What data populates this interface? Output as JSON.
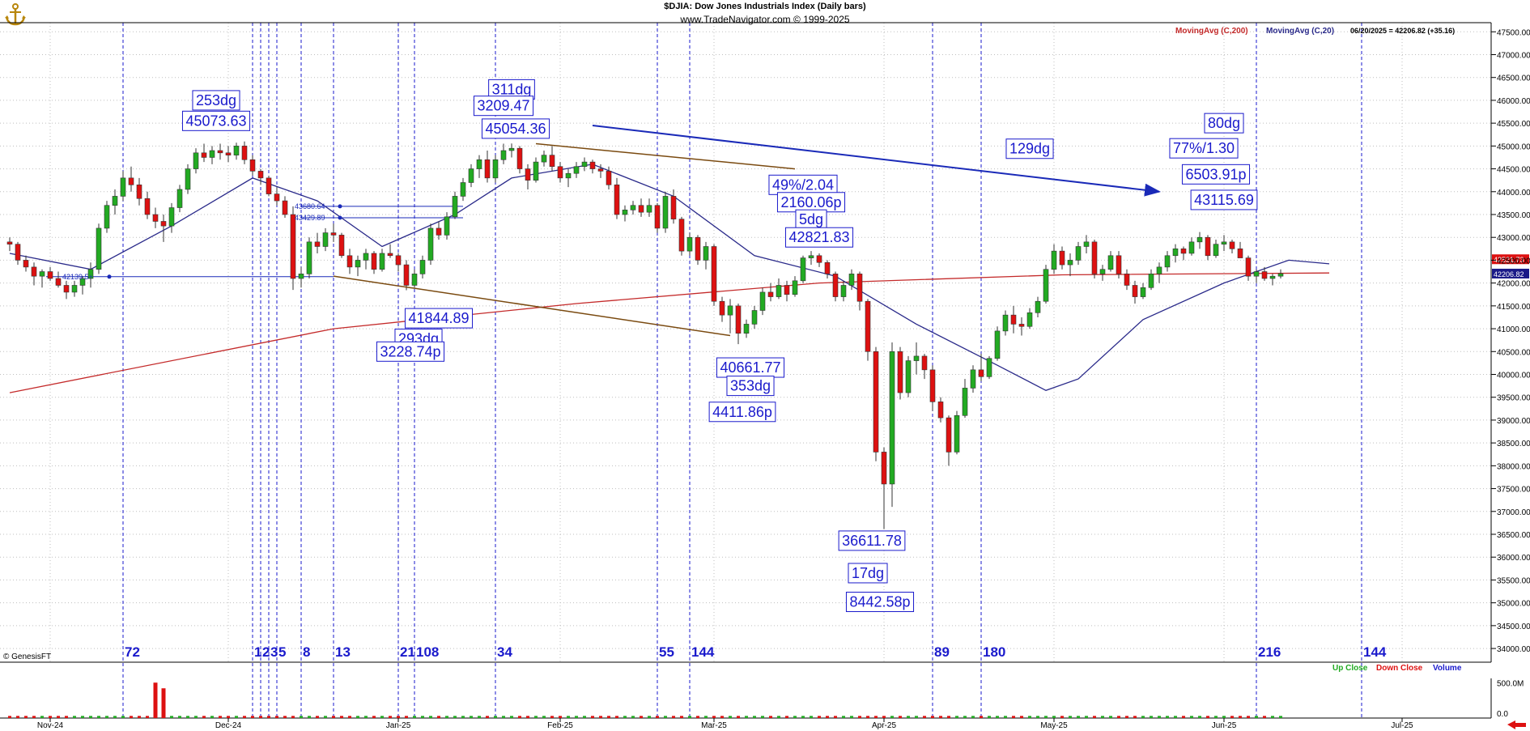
{
  "header": {
    "title": "$DJIA:  Dow Jones Industrials Index  (Daily bars)",
    "site": "www.TradeNavigator.com © 1999-2025"
  },
  "legend": {
    "ma200_label": "MovingAvg (C,200)",
    "ma20_label": "MovingAvg (C,20)",
    "readout": "06/20/2025 = 42206.82 (+35.16)"
  },
  "watermark": "© GenesisFT",
  "volume_legend": {
    "up": "Up Close",
    "down": "Down Close",
    "vol": "Volume"
  },
  "colors": {
    "up": "#22aa22",
    "down": "#dd1111",
    "ma200": "#c42a2a",
    "ma20": "#2a2a8a",
    "annotation": "#1a1acc",
    "grid": "#bfbfbf",
    "trend_blue": "#1a2ab8",
    "trend_brown": "#7a4a10"
  },
  "chart_data": {
    "type": "candlestick",
    "title": "$DJIA:  Dow Jones Industrials Index  (Daily bars)",
    "ylim": [
      33700,
      47700
    ],
    "y_ticks": [
      "34000.00",
      "34500.00",
      "35000.00",
      "35500.00",
      "36000.00",
      "36500.00",
      "37000.00",
      "37500.00",
      "38000.00",
      "38500.00",
      "39000.00",
      "39500.00",
      "40000.00",
      "40500.00",
      "41000.00",
      "41500.00",
      "42000.00",
      "42500.00",
      "43000.00",
      "43500.00",
      "44000.00",
      "44500.00",
      "45000.00",
      "45500.00",
      "46000.00",
      "46500.00",
      "47000.00",
      "47500.00"
    ],
    "x_labels": [
      {
        "label": "Nov-24",
        "bar": 5
      },
      {
        "label": "Dec-24",
        "bar": 27
      },
      {
        "label": "Jan-25",
        "bar": 48
      },
      {
        "label": "Feb-25",
        "bar": 68
      },
      {
        "label": "Mar-25",
        "bar": 87
      },
      {
        "label": "Apr-25",
        "bar": 108
      },
      {
        "label": "May-25",
        "bar": 129
      },
      {
        "label": "Jun-25",
        "bar": 150
      },
      {
        "label": "Jul-25",
        "bar": 172
      }
    ],
    "candles": [
      [
        42900,
        43000,
        42700,
        42850
      ],
      [
        42850,
        42900,
        42400,
        42500
      ],
      [
        42500,
        42600,
        42250,
        42350
      ],
      [
        42350,
        42450,
        41950,
        42150
      ],
      [
        42150,
        42300,
        41900,
        42250
      ],
      [
        42250,
        42350,
        42050,
        42100
      ],
      [
        42100,
        42250,
        41900,
        41950
      ],
      [
        41950,
        42050,
        41650,
        41800
      ],
      [
        41800,
        42050,
        41700,
        41950
      ],
      [
        41950,
        42150,
        41750,
        42100
      ],
      [
        42100,
        42450,
        41900,
        42300
      ],
      [
        42300,
        43300,
        42200,
        43200
      ],
      [
        43200,
        43800,
        43100,
        43700
      ],
      [
        43700,
        44050,
        43500,
        43900
      ],
      [
        43900,
        44450,
        43800,
        44300
      ],
      [
        44300,
        44550,
        44000,
        44150
      ],
      [
        44150,
        44300,
        43700,
        43850
      ],
      [
        43850,
        44000,
        43400,
        43500
      ],
      [
        43500,
        43650,
        43200,
        43350
      ],
      [
        43350,
        43500,
        42900,
        43250
      ],
      [
        43250,
        43750,
        43100,
        43650
      ],
      [
        43650,
        44150,
        43550,
        44050
      ],
      [
        44050,
        44600,
        43950,
        44500
      ],
      [
        44500,
        44950,
        44400,
        44850
      ],
      [
        44850,
        45050,
        44650,
        44750
      ],
      [
        44750,
        45000,
        44600,
        44900
      ],
      [
        44900,
        45050,
        44700,
        44850
      ],
      [
        44850,
        45000,
        44650,
        44800
      ],
      [
        44800,
        45073,
        44700,
        45000
      ],
      [
        45000,
        45100,
        44600,
        44700
      ],
      [
        44700,
        44800,
        44350,
        44450
      ],
      [
        44450,
        44500,
        44150,
        44300
      ],
      [
        44300,
        44350,
        43900,
        43950
      ],
      [
        43950,
        44100,
        43700,
        43800
      ],
      [
        43800,
        43900,
        43430,
        43500
      ],
      [
        43500,
        43680,
        41850,
        42100
      ],
      [
        42100,
        42350,
        41900,
        42200
      ],
      [
        42200,
        43000,
        42100,
        42900
      ],
      [
        42900,
        43100,
        42650,
        42800
      ],
      [
        42800,
        43200,
        42700,
        43100
      ],
      [
        43100,
        43300,
        42900,
        43050
      ],
      [
        43050,
        43100,
        42550,
        42600
      ],
      [
        42600,
        42750,
        42200,
        42350
      ],
      [
        42350,
        42600,
        42150,
        42500
      ],
      [
        42500,
        42750,
        42300,
        42650
      ],
      [
        42650,
        42700,
        42200,
        42300
      ],
      [
        42300,
        42750,
        42250,
        42650
      ],
      [
        42650,
        42850,
        42550,
        42600
      ],
      [
        42600,
        42650,
        42250,
        42400
      ],
      [
        42400,
        42500,
        41844,
        41950
      ],
      [
        41950,
        42300,
        41900,
        42200
      ],
      [
        42200,
        42600,
        42100,
        42500
      ],
      [
        42500,
        43300,
        42400,
        43200
      ],
      [
        43200,
        43350,
        42950,
        43050
      ],
      [
        43050,
        43550,
        42950,
        43450
      ],
      [
        43450,
        44000,
        43400,
        43900
      ],
      [
        43900,
        44300,
        43800,
        44200
      ],
      [
        44200,
        44600,
        44100,
        44500
      ],
      [
        44500,
        44800,
        44300,
        44700
      ],
      [
        44700,
        44900,
        44200,
        44300
      ],
      [
        44300,
        44800,
        44200,
        44700
      ],
      [
        44700,
        45050,
        44600,
        44900
      ],
      [
        44900,
        45054,
        44750,
        44950
      ],
      [
        44950,
        45000,
        44400,
        44500
      ],
      [
        44500,
        44600,
        44050,
        44250
      ],
      [
        44250,
        44750,
        44200,
        44650
      ],
      [
        44650,
        44900,
        44550,
        44800
      ],
      [
        44800,
        45000,
        44450,
        44550
      ],
      [
        44550,
        44650,
        44200,
        44300
      ],
      [
        44300,
        44500,
        44100,
        44400
      ],
      [
        44400,
        44650,
        44300,
        44550
      ],
      [
        44550,
        44750,
        44450,
        44650
      ],
      [
        44650,
        44700,
        44400,
        44500
      ],
      [
        44500,
        44600,
        44300,
        44450
      ],
      [
        44450,
        44550,
        44050,
        44150
      ],
      [
        44150,
        44300,
        43400,
        43500
      ],
      [
        43500,
        43700,
        43350,
        43600
      ],
      [
        43600,
        43800,
        43500,
        43700
      ],
      [
        43700,
        43850,
        43450,
        43550
      ],
      [
        43550,
        43850,
        43450,
        43700
      ],
      [
        43700,
        43750,
        43100,
        43200
      ],
      [
        43200,
        44000,
        43100,
        43900
      ],
      [
        43900,
        44050,
        43300,
        43400
      ],
      [
        43400,
        43450,
        42600,
        42700
      ],
      [
        42700,
        43100,
        42600,
        43000
      ],
      [
        43000,
        43050,
        42400,
        42500
      ],
      [
        42500,
        42900,
        42300,
        42800
      ],
      [
        42800,
        42850,
        41500,
        41600
      ],
      [
        41600,
        41700,
        41150,
        41300
      ],
      [
        41300,
        41650,
        40900,
        41500
      ],
      [
        41500,
        41550,
        40662,
        40900
      ],
      [
        40900,
        41200,
        40800,
        41100
      ],
      [
        41100,
        41500,
        41000,
        41400
      ],
      [
        41400,
        41900,
        41300,
        41800
      ],
      [
        41800,
        42000,
        41600,
        41700
      ],
      [
        41700,
        42100,
        41650,
        41950
      ],
      [
        41950,
        42050,
        41600,
        41750
      ],
      [
        41750,
        42150,
        41700,
        42050
      ],
      [
        42050,
        42600,
        42000,
        42550
      ],
      [
        42550,
        42700,
        42400,
        42600
      ],
      [
        42600,
        42650,
        42350,
        42450
      ],
      [
        42450,
        42500,
        42100,
        42200
      ],
      [
        42200,
        42250,
        41600,
        41700
      ],
      [
        41700,
        42050,
        41600,
        41950
      ],
      [
        41950,
        42300,
        41850,
        42200
      ],
      [
        42200,
        42250,
        41400,
        41600
      ],
      [
        41600,
        41650,
        40300,
        40500
      ],
      [
        40500,
        40600,
        38100,
        38300
      ],
      [
        38300,
        38400,
        36612,
        37600
      ],
      [
        37600,
        40700,
        37100,
        40500
      ],
      [
        40500,
        40600,
        39450,
        39600
      ],
      [
        39600,
        40400,
        39500,
        40300
      ],
      [
        40300,
        40700,
        40000,
        40400
      ],
      [
        40400,
        40450,
        39900,
        40100
      ],
      [
        40100,
        40200,
        39200,
        39400
      ],
      [
        39400,
        39500,
        38950,
        39050
      ],
      [
        39050,
        39100,
        38000,
        38300
      ],
      [
        38300,
        39200,
        38250,
        39100
      ],
      [
        39100,
        39900,
        39050,
        39700
      ],
      [
        39700,
        40200,
        39600,
        40100
      ],
      [
        40100,
        40450,
        39850,
        39950
      ],
      [
        39950,
        40400,
        39900,
        40350
      ],
      [
        40350,
        41050,
        40300,
        40950
      ],
      [
        40950,
        41400,
        40850,
        41300
      ],
      [
        41300,
        41500,
        40900,
        41100
      ],
      [
        41100,
        41250,
        40850,
        41050
      ],
      [
        41050,
        41450,
        41000,
        41350
      ],
      [
        41350,
        41700,
        41250,
        41600
      ],
      [
        41600,
        42400,
        41550,
        42300
      ],
      [
        42300,
        42850,
        42200,
        42700
      ],
      [
        42700,
        42800,
        42300,
        42400
      ],
      [
        42400,
        42650,
        42150,
        42500
      ],
      [
        42500,
        42900,
        42400,
        42800
      ],
      [
        42800,
        43050,
        42650,
        42900
      ],
      [
        42900,
        42950,
        42100,
        42200
      ],
      [
        42200,
        42400,
        42050,
        42300
      ],
      [
        42300,
        42700,
        42250,
        42600
      ],
      [
        42600,
        42700,
        42100,
        42200
      ],
      [
        42200,
        42300,
        41850,
        41950
      ],
      [
        41950,
        42050,
        41550,
        41700
      ],
      [
        41700,
        42000,
        41650,
        41900
      ],
      [
        41900,
        42300,
        41850,
        42200
      ],
      [
        42200,
        42450,
        42000,
        42350
      ],
      [
        42350,
        42700,
        42250,
        42600
      ],
      [
        42600,
        42850,
        42450,
        42750
      ],
      [
        42750,
        42800,
        42500,
        42650
      ],
      [
        42650,
        43000,
        42600,
        42900
      ],
      [
        42900,
        43116,
        42750,
        43000
      ],
      [
        43000,
        43050,
        42500,
        42600
      ],
      [
        42600,
        42950,
        42550,
        42850
      ],
      [
        42850,
        43050,
        42700,
        42900
      ],
      [
        42900,
        42950,
        42650,
        42750
      ],
      [
        42750,
        42900,
        42600,
        42550
      ],
      [
        42550,
        42600,
        42050,
        42150
      ],
      [
        42150,
        42300,
        42000,
        42250
      ],
      [
        42250,
        42350,
        42050,
        42100
      ],
      [
        42100,
        42200,
        41950,
        42150
      ],
      [
        42150,
        42300,
        42100,
        42207
      ]
    ],
    "ma200": [
      [
        0,
        39600
      ],
      [
        40,
        41000
      ],
      [
        70,
        41550
      ],
      [
        100,
        42000
      ],
      [
        130,
        42180
      ],
      [
        163,
        42220
      ]
    ],
    "ma20": [
      [
        0,
        42650
      ],
      [
        10,
        42300
      ],
      [
        20,
        43250
      ],
      [
        30,
        44300
      ],
      [
        38,
        43800
      ],
      [
        46,
        42800
      ],
      [
        55,
        43500
      ],
      [
        62,
        44300
      ],
      [
        72,
        44600
      ],
      [
        82,
        43900
      ],
      [
        92,
        42600
      ],
      [
        102,
        42150
      ],
      [
        112,
        41100
      ],
      [
        122,
        40200
      ],
      [
        128,
        39650
      ],
      [
        132,
        39900
      ],
      [
        140,
        41200
      ],
      [
        150,
        42000
      ],
      [
        158,
        42500
      ],
      [
        163,
        42420
      ]
    ],
    "cycle_lines": [
      {
        "bar": 14,
        "label": "72"
      },
      {
        "bar": 30,
        "label": "1"
      },
      {
        "bar": 31,
        "label": "2"
      },
      {
        "bar": 32,
        "label": "3"
      },
      {
        "bar": 33,
        "label": "5"
      },
      {
        "bar": 36,
        "label": "8"
      },
      {
        "bar": 40,
        "label": "13"
      },
      {
        "bar": 48,
        "label": "21"
      },
      {
        "bar": 50,
        "label": "108"
      },
      {
        "bar": 60,
        "label": "34"
      },
      {
        "bar": 80,
        "label": "55"
      },
      {
        "bar": 84,
        "label": "144"
      },
      {
        "bar": 114,
        "label": "89"
      },
      {
        "bar": 120,
        "label": "180"
      },
      {
        "bar": 154,
        "label": "216"
      },
      {
        "bar": 167,
        "label": "144"
      }
    ],
    "boxed_annotations": [
      {
        "text": "253dg",
        "bar": 25.5,
        "price": 46000
      },
      {
        "text": "45073.63",
        "bar": 25.5,
        "price": 45550
      },
      {
        "text": "311dg",
        "bar": 62,
        "price": 46240
      },
      {
        "text": "3209.47",
        "bar": 61,
        "price": 45880
      },
      {
        "text": "45054.36",
        "bar": 62.5,
        "price": 45380
      },
      {
        "text": "80dg",
        "bar": 150,
        "price": 45500
      },
      {
        "text": "129dg",
        "bar": 126,
        "price": 44940
      },
      {
        "text": "77%/1.30",
        "bar": 147.5,
        "price": 44950
      },
      {
        "text": "6503.91p",
        "bar": 149,
        "price": 44380
      },
      {
        "text": "43115.69",
        "bar": 150,
        "price": 43820
      },
      {
        "text": "49%/2.04",
        "bar": 98,
        "price": 44150
      },
      {
        "text": "2160.06p",
        "bar": 99,
        "price": 43770
      },
      {
        "text": "5dg",
        "bar": 99,
        "price": 43390
      },
      {
        "text": "42821.83",
        "bar": 100,
        "price": 43000
      },
      {
        "text": "41844.89",
        "bar": 53,
        "price": 41230
      },
      {
        "text": "293dg",
        "bar": 50.5,
        "price": 40780
      },
      {
        "text": "3228.74p",
        "bar": 49.5,
        "price": 40500
      },
      {
        "text": "40661.77",
        "bar": 91.5,
        "price": 40150
      },
      {
        "text": "353dg",
        "bar": 91.5,
        "price": 39750
      },
      {
        "text": "4411.86p",
        "bar": 90.5,
        "price": 39180
      },
      {
        "text": "36611.78",
        "bar": 106.5,
        "price": 36360
      },
      {
        "text": "17dg",
        "bar": 106,
        "price": 35650
      },
      {
        "text": "8442.58p",
        "bar": 107.5,
        "price": 35020
      }
    ],
    "small_annotations": [
      {
        "text": "43680.64",
        "bar": 35.2,
        "price": 43680
      },
      {
        "text": "43429.89",
        "bar": 35.2,
        "price": 43429
      },
      {
        "text": "42139.5+",
        "bar": 6.5,
        "price": 42139
      },
      {
        "text": "42521.73",
        "bar": 166,
        "price": 42521
      },
      {
        "text": "42206.82",
        "bar": 166,
        "price": 42207
      }
    ],
    "trend_lines": [
      {
        "color": "trend_blue",
        "from": [
          72,
          45450
        ],
        "to": [
          142,
          44000
        ],
        "arrow": true
      },
      {
        "color": "trend_brown",
        "from": [
          65,
          45050
        ],
        "to": [
          97,
          44500
        ],
        "arrow": false
      },
      {
        "color": "trend_brown",
        "from": [
          40,
          42150
        ],
        "to": [
          89,
          40850
        ],
        "arrow": false
      }
    ],
    "h_levels": [
      {
        "from": 4.5,
        "to": 40,
        "price": 42139
      },
      {
        "from": 36,
        "to": 56,
        "price": 43680
      },
      {
        "from": 36,
        "to": 56,
        "price": 43429
      }
    ],
    "volume": {
      "ymax_label": "500.0M",
      "zero_label": "0.0",
      "spikes": [
        {
          "bar": 18,
          "value": 500
        },
        {
          "bar": 19,
          "value": 420
        }
      ],
      "base_value": 30
    }
  }
}
